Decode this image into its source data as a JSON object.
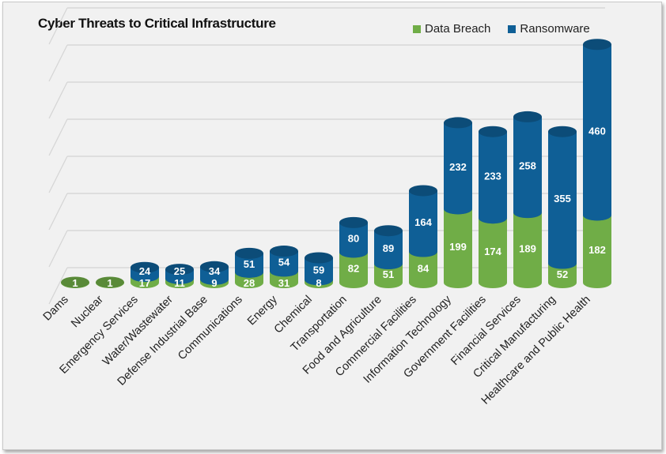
{
  "chart_data": {
    "type": "bar",
    "stacked": true,
    "style": "3d-cylinder",
    "title": "Cyber Threats to Critical Infrastructure",
    "categories": [
      "Dams",
      "Nuclear",
      "Emergency Services",
      "Water/Wastewater",
      "Defense Industrial Base",
      "Communications",
      "Energy",
      "Chemical",
      "Transportation",
      "Food and Agriculture",
      "Commercial Facilities",
      "Information Technology",
      "Government Facilities",
      "Financial Services",
      "Critical Manufacturing",
      "Healthcare and Public Health"
    ],
    "series": [
      {
        "name": "Data Breach",
        "color": "#70ad47",
        "values": [
          1,
          1,
          17,
          11,
          9,
          28,
          31,
          8,
          82,
          51,
          84,
          199,
          174,
          189,
          52,
          182
        ]
      },
      {
        "name": "Ransomware",
        "color": "#0f5f96",
        "values": [
          null,
          null,
          24,
          25,
          34,
          51,
          54,
          59,
          80,
          89,
          164,
          232,
          233,
          258,
          355,
          460
        ]
      }
    ],
    "ylim": [
      0,
      700
    ],
    "grid": true,
    "legend_position": "top-right",
    "y_axis_labels_shown": false
  }
}
